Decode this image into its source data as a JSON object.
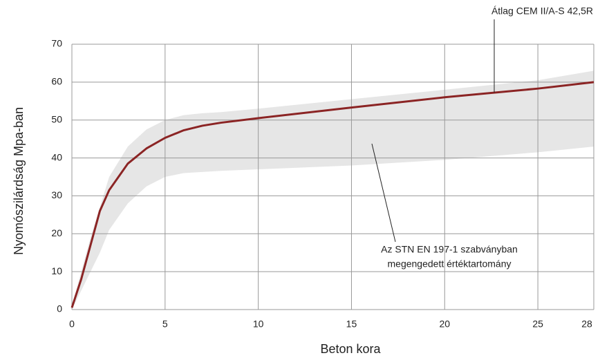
{
  "chart_data": {
    "type": "line",
    "xlabel": "Beton kora",
    "ylabel": "Nyomószilárdság Mpa-ban",
    "x": [
      0,
      0.5,
      1,
      1.5,
      2,
      3,
      4,
      5,
      6,
      7,
      8,
      10,
      15,
      20,
      25,
      28
    ],
    "series": [
      {
        "name": "Átlag CEM II/A-S 42,5R",
        "color": "#8b2424",
        "values": [
          0.5,
          8,
          17,
          26,
          31.5,
          38.5,
          42.5,
          45.3,
          47.3,
          48.5,
          49.3,
          50.5,
          53.3,
          56,
          58.3,
          60
        ]
      }
    ],
    "band": {
      "label_lines": [
        "Az STN EN 197-1 szabványban",
        "megengedett értéktartomány"
      ],
      "color": "#e6e6e6",
      "upper": [
        1,
        10,
        19,
        27,
        35,
        43,
        47.5,
        50,
        51.3,
        51.8,
        52.1,
        53,
        55.5,
        58,
        60.5,
        63
      ],
      "lower": [
        0,
        5,
        10,
        15,
        21,
        28,
        32.5,
        35,
        36,
        36.3,
        36.6,
        37,
        38,
        39.5,
        41.5,
        43
      ]
    },
    "xlim": [
      0,
      28
    ],
    "xticks": [
      0,
      5,
      10,
      15,
      20,
      25,
      28
    ],
    "ylim": [
      0,
      70
    ],
    "yticks": [
      0,
      10,
      20,
      30,
      40,
      50,
      60,
      70
    ],
    "grid": true
  }
}
